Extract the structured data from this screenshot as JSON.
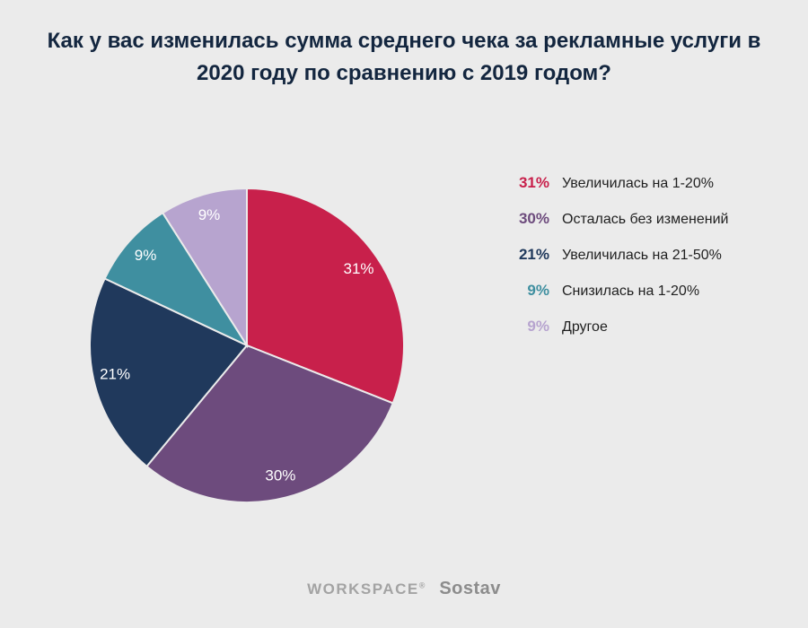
{
  "title": "Как у вас изменилась сумма среднего чека за рекламные услуги в 2020 году по сравнению с 2019 годом?",
  "chart_data": {
    "type": "pie",
    "title": "Как у вас изменилась сумма среднего чека за рекламные услуги в 2020 году по сравнению с 2019 годом?",
    "categories": [
      "Увеличилась на 1-20%",
      "Осталась без изменений",
      "Увеличилась на 21-50%",
      "Снизилась на 1-20%",
      "Другое"
    ],
    "values": [
      31,
      30,
      21,
      9,
      9
    ],
    "percent_labels": [
      "31%",
      "30%",
      "21%",
      "9%",
      "9%"
    ],
    "colors": [
      "#c8204b",
      "#6d4b7d",
      "#20395c",
      "#3f8fa0",
      "#b7a4cf"
    ],
    "start_angle_deg": 0,
    "direction": "clockwise",
    "legend_position": "right",
    "slice_label_color": "#ffffff",
    "slice_label_position": "inside"
  },
  "footer": {
    "brand1": "WORKSPACE",
    "brand1_mark": "®",
    "brand2": "Sostav"
  },
  "colors": {
    "background": "#ebebeb",
    "title_text": "#13263f",
    "legend_text": "#1f1f1f",
    "footer_text": "#a3a3a3"
  }
}
